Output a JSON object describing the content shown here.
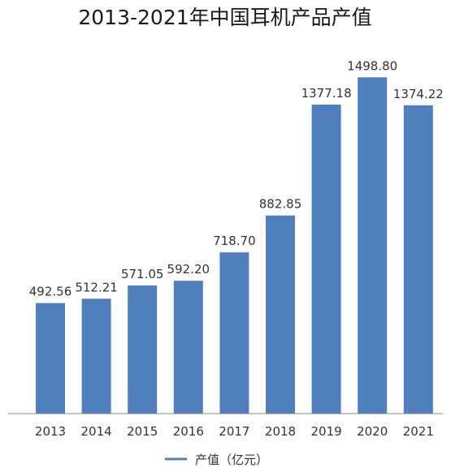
{
  "chart_data": {
    "type": "bar",
    "title": "2013-2021年中国耳机产品产值",
    "categories": [
      "2013",
      "2014",
      "2015",
      "2016",
      "2017",
      "2018",
      "2019",
      "2020",
      "2021"
    ],
    "series": [
      {
        "name": "产值（亿元）",
        "values": [
          492.56,
          512.21,
          571.05,
          592.2,
          718.7,
          882.85,
          1377.18,
          1498.8,
          1374.22
        ],
        "labels": [
          "492.56",
          "512.21",
          "571.05",
          "592.20",
          "718.70",
          "882.85",
          "1377.18",
          "1498.80",
          "1374.22"
        ]
      }
    ],
    "xlabel": "",
    "ylabel": "",
    "ylim": [
      0,
      1500
    ],
    "grid": false,
    "legend": "bottom-center",
    "colors": {
      "bar": "#4f7fbc",
      "axis": "#8a8a8a"
    }
  }
}
